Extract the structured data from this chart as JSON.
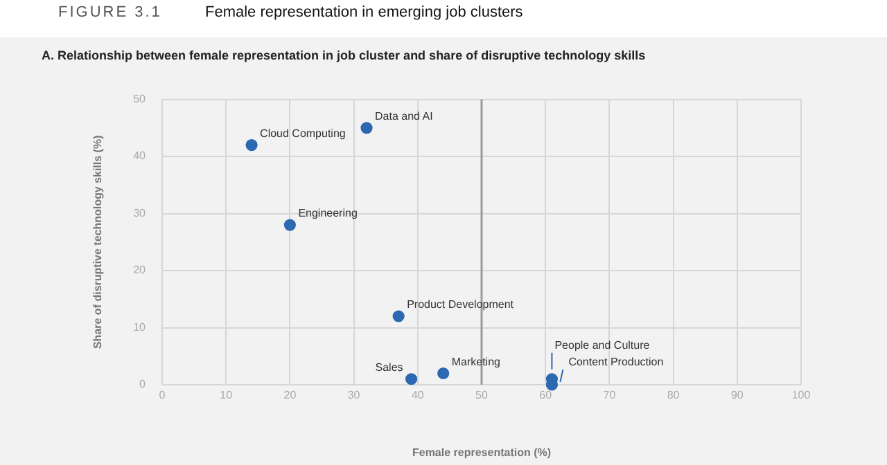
{
  "chart_data": {
    "type": "scatter",
    "title": "Female representation in emerging job clusters",
    "subtitle": "A. Relationship between female representation in job cluster and share of disruptive technology skills",
    "xlabel": "Female representation (%)",
    "ylabel": "Share of disruptive technology skills (%)",
    "x": [
      14,
      32,
      20,
      37,
      39,
      44,
      61,
      61
    ],
    "series": [
      {
        "color": "#2d68b2",
        "values": [
          42,
          45,
          28,
          12,
          1,
          2,
          1,
          0
        ]
      }
    ],
    "annotations": [
      "FIGURE 3.1",
      {
        "text": "Cloud Computing",
        "x": 14,
        "y": 42
      },
      {
        "text": "Data and AI",
        "x": 32,
        "y": 45
      },
      {
        "text": "Engineering",
        "x": 20,
        "y": 28
      },
      {
        "text": "Product Development",
        "x": 37,
        "y": 12
      },
      {
        "text": "Sales",
        "x": 39,
        "y": 1
      },
      {
        "text": "Marketing",
        "x": 44,
        "y": 2
      },
      {
        "text": "People and Culture",
        "x": 61,
        "y": 1
      },
      {
        "text": "Content Production",
        "x": 61,
        "y": 0
      }
    ],
    "ref_lines": [
      {
        "axis": "x",
        "value": 50,
        "color": "#999999"
      }
    ],
    "xlim": [
      0,
      100
    ],
    "xticks": [
      0,
      10,
      20,
      30,
      40,
      50,
      60,
      70,
      80,
      90,
      100
    ],
    "ylim": [
      0,
      50
    ],
    "yticks": [
      0,
      10,
      20,
      30,
      40,
      50
    ],
    "grid": true,
    "legend": false,
    "marker": "circle"
  }
}
